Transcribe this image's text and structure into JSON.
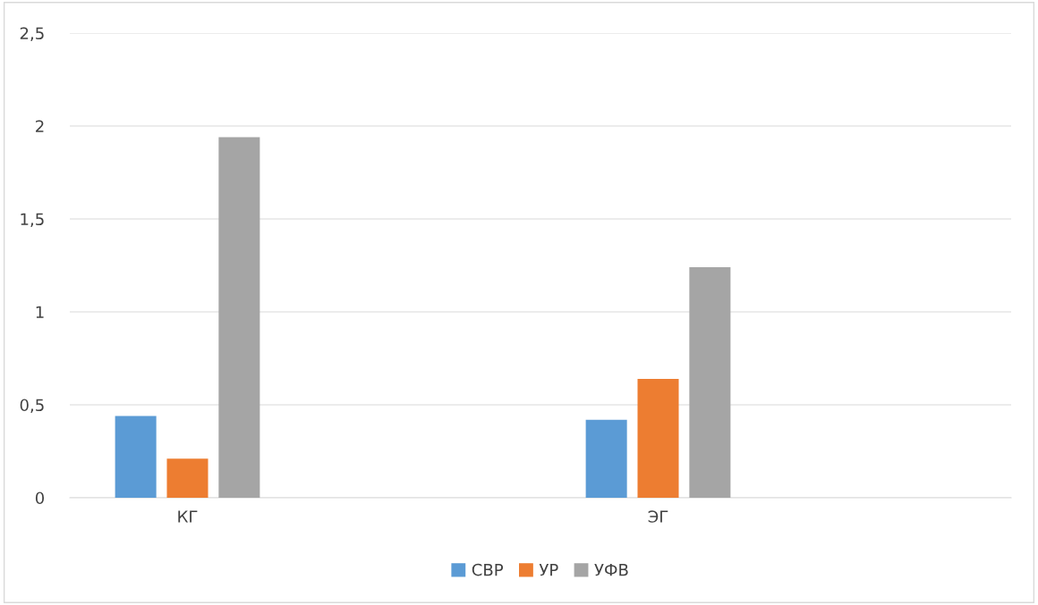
{
  "chart_data": {
    "type": "bar",
    "categories": [
      "КГ",
      null,
      "ЭГ",
      null
    ],
    "series": [
      {
        "name": "СВР",
        "color": "#5b9bd5",
        "values": [
          0.44,
          null,
          0.42,
          null
        ]
      },
      {
        "name": "УР",
        "color": "#ed7d31",
        "values": [
          0.21,
          null,
          0.64,
          null
        ]
      },
      {
        "name": "УФВ",
        "color": "#a5a5a5",
        "values": [
          1.94,
          null,
          1.24,
          null
        ]
      }
    ],
    "ylim": [
      0,
      2.5
    ],
    "yticks": [
      {
        "value": 0,
        "label": "0"
      },
      {
        "value": 0.5,
        "label": "0,5"
      },
      {
        "value": 1,
        "label": "1"
      },
      {
        "value": 1.5,
        "label": "1,5"
      },
      {
        "value": 2,
        "label": "2"
      },
      {
        "value": 2.5,
        "label": "2,5"
      }
    ],
    "grid": "y",
    "legend": "bottom"
  }
}
